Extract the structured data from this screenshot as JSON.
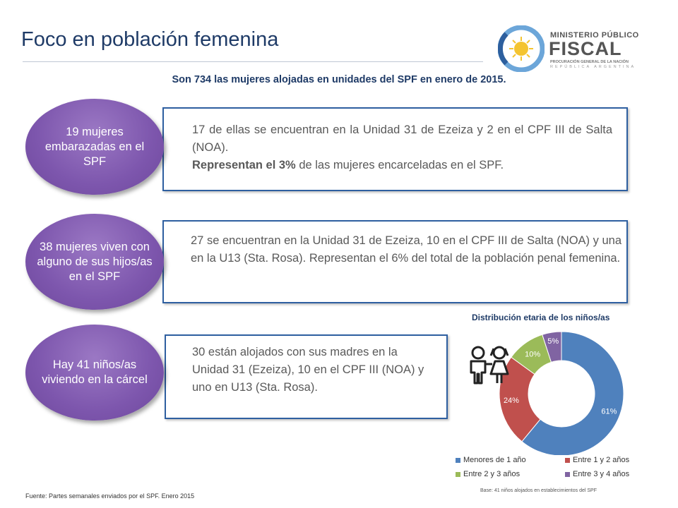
{
  "header": {
    "title": "Foco en población femenina",
    "subtitle": "Son 734 las mujeres alojadas en unidades del SPF en enero de 2015."
  },
  "logo": {
    "line1": "MINISTERIO PÚBLICO",
    "line2": "FISCAL",
    "line3": "PROCURACIÓN GENERAL DE LA NACIÓN",
    "line4": "REPÚBLICA ARGENTINA"
  },
  "blocks": [
    {
      "bubble": "19 mujeres embarazadas en el SPF",
      "text_normal": "17 de ellas se encuentran en la Unidad 31 de Ezeiza y 2 en el CPF III de Salta (NOA).",
      "text_bold": "Representan el 3%",
      "text_tail": " de las mujeres encarceladas en el SPF."
    },
    {
      "bubble": "38 mujeres viven con alguno de sus hijos/as en el SPF",
      "text_normal": "27 se encuentran en la Unidad 31 de Ezeiza, 10 en el CPF III de Salta (NOA) y una en la U13 (Sta. Rosa). Representan el 6% del total de la población penal femenina."
    },
    {
      "bubble": "Hay 41 niños/as viviendo en la cárcel",
      "text_normal": "30 están alojados con sus madres en la Unidad 31 (Ezeiza), 10 en el CPF III (NOA) y uno en U13 (Sta. Rosa)."
    }
  ],
  "chart_data": {
    "type": "pie",
    "title": "Distribución etaria de los niños/as",
    "categories": [
      "Menores de 1 año",
      "Entre 1 y 2 años",
      "Entre 2 y 3 años",
      "Entre 3 y 4 años"
    ],
    "values": [
      61,
      24,
      10,
      5
    ],
    "labels": [
      "61%",
      "24%",
      "10%",
      "5%"
    ],
    "colors": [
      "#4f81bd",
      "#c0504d",
      "#9bbb59",
      "#8064a2"
    ],
    "donut": true,
    "legend_position": "bottom"
  },
  "icons": {
    "children": "children-icon"
  },
  "footer": {
    "source": "Fuente: Partes semanales enviados por el SPF. Enero 2015",
    "base": "Base: 41 niños alojados en establecimientos del SPF"
  }
}
